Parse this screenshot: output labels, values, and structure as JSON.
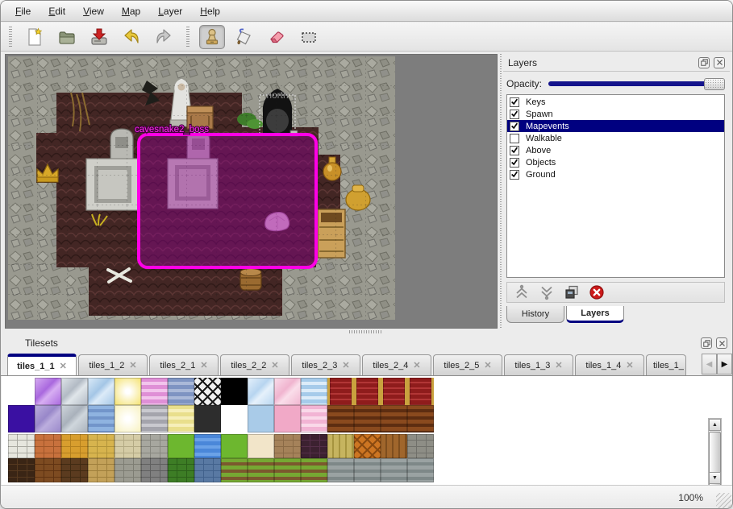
{
  "colors": {
    "accent_navy": "#000080",
    "map_selection_magenta": "#ff00e6",
    "map_background_gray": "#7d7d7d"
  },
  "menu_bar": {
    "items": [
      "File",
      "Edit",
      "View",
      "Map",
      "Layer",
      "Help"
    ]
  },
  "toolbar": {
    "buttons": [
      {
        "icon": "new-file-icon"
      },
      {
        "icon": "open-folder-icon"
      },
      {
        "icon": "save-icon"
      },
      {
        "icon": "undo-icon"
      },
      {
        "icon": "redo-icon"
      },
      {
        "icon": "stamp-tool-icon",
        "active": true
      },
      {
        "icon": "fill-tool-icon"
      },
      {
        "icon": "eraser-tool-icon"
      },
      {
        "icon": "rect-select-tool-icon"
      }
    ]
  },
  "map_view": {
    "north_label": "north",
    "event_label": "cavesnake2_boss"
  },
  "layers_panel": {
    "title": "Layers",
    "opacity_label": "Opacity:",
    "layers": [
      {
        "name": "Keys",
        "checked": true,
        "selected": false
      },
      {
        "name": "Spawn",
        "checked": true,
        "selected": false
      },
      {
        "name": "Mapevents",
        "checked": true,
        "selected": true
      },
      {
        "name": "Walkable",
        "checked": false,
        "selected": false
      },
      {
        "name": "Above",
        "checked": true,
        "selected": false
      },
      {
        "name": "Objects",
        "checked": true,
        "selected": false
      },
      {
        "name": "Ground",
        "checked": true,
        "selected": false
      }
    ],
    "buttons": [
      "move-layer-up",
      "move-layer-down",
      "duplicate-layer",
      "delete-layer"
    ],
    "tabs": [
      {
        "label": "History",
        "active": false
      },
      {
        "label": "Layers",
        "active": true
      }
    ]
  },
  "tilesets_panel": {
    "title": "Tilesets",
    "tabs": [
      {
        "label": "tiles_1_1",
        "active": true
      },
      {
        "label": "tiles_1_2",
        "active": false
      },
      {
        "label": "tiles_2_1",
        "active": false
      },
      {
        "label": "tiles_2_2",
        "active": false
      },
      {
        "label": "tiles_2_3",
        "active": false
      },
      {
        "label": "tiles_2_4",
        "active": false
      },
      {
        "label": "tiles_2_5",
        "active": false
      },
      {
        "label": "tiles_1_3",
        "active": false
      },
      {
        "label": "tiles_1_4",
        "active": false
      },
      {
        "label": "tiles_1_",
        "active": false,
        "partial": true
      }
    ],
    "palette": {
      "empty": {
        "s": "empty",
        "c": "#ffffff"
      },
      "crystal_purple": {
        "s": "crystal",
        "c": "#a968de",
        "c2": "#d7aef2"
      },
      "crystal_gray": {
        "s": "crystal",
        "c": "#b2bac4",
        "c2": "#e0e6ea"
      },
      "crystal_blue": {
        "s": "crystal",
        "c": "#a4c6e6",
        "c2": "#dcebf8"
      },
      "glow_yellow": {
        "s": "radial",
        "c": "#f5e478"
      },
      "stripes_pink": {
        "s": "hstripes",
        "c": "#df8fd6",
        "c2": "#f2c4ec"
      },
      "stripes_blue": {
        "s": "hstripes",
        "c": "#7e94c2",
        "c2": "#aab9d8"
      },
      "lattice": {
        "s": "lattice",
        "c": "#f2f2f2",
        "c2": "#1a1a1a"
      },
      "black": {
        "s": "flat",
        "c": "#000000"
      },
      "crystal_lightblue": {
        "s": "crystal",
        "c": "#b7d5f0",
        "c2": "#e6f1fb"
      },
      "crystal_pink": {
        "s": "crystal",
        "c": "#f0b4cf",
        "c2": "#fadeea"
      },
      "waves_blue": {
        "s": "hstripes",
        "c": "#a6cbea",
        "c2": "#dcecf9"
      },
      "carpet_red": {
        "s": "carpet",
        "c": "#8f1c1c",
        "c2": "#b23636"
      },
      "solid_indigo": {
        "s": "flat",
        "c": "#3a10a2"
      },
      "crystal_purple2": {
        "s": "crystal",
        "c": "#9887c9",
        "c2": "#bcaede"
      },
      "crystal_gray2": {
        "s": "crystal",
        "c": "#a9b1bb",
        "c2": "#cfd6dc"
      },
      "water_blue": {
        "s": "hstripes",
        "c": "#8fb3e0",
        "c2": "#7295ca"
      },
      "glow_pale": {
        "s": "radial",
        "c": "#f8f2c2"
      },
      "stripes_gray": {
        "s": "hstripes",
        "c": "#a4a4ac",
        "c2": "#c9c9cf"
      },
      "stripes_yellow": {
        "s": "hstripes",
        "c": "#e9df8c",
        "c2": "#f6efba"
      },
      "sign_dark": {
        "s": "flat",
        "c": "#2d2d2d"
      },
      "flat_blue": {
        "s": "flat",
        "c": "#a9cbe8"
      },
      "flat_pink": {
        "s": "flat",
        "c": "#f1a9c7"
      },
      "waves_pink": {
        "s": "hstripes",
        "c": "#f2b4d4",
        "c2": "#fad9e9"
      },
      "planks_brown": {
        "s": "hstripes",
        "c": "#8a4a1e",
        "c2": "#5d2d11"
      },
      "stone_white": {
        "s": "bricks",
        "c": "#e6e6de",
        "c2": "#a8a8a0"
      },
      "tiles_orange": {
        "s": "bricks",
        "c": "#c8713d",
        "c2": "#a05628"
      },
      "tiles_gold": {
        "s": "bricks",
        "c": "#d89e2e",
        "c2": "#b4801e"
      },
      "path_yellow": {
        "s": "bricks",
        "c": "#d7b44e",
        "c2": "#b2943a"
      },
      "cobbles_beige": {
        "s": "bricks",
        "c": "#d5cca6",
        "c2": "#b3aa84"
      },
      "cobbles_gray": {
        "s": "bricks",
        "c": "#a7a79f",
        "c2": "#87877f"
      },
      "grass_green": {
        "s": "flat",
        "c": "#6db72f"
      },
      "water_deep": {
        "s": "hstripes",
        "c": "#4a87d9",
        "c2": "#6ba2e7"
      },
      "sand_cream": {
        "s": "flat",
        "c": "#f2e5c9"
      },
      "dirt_rocks": {
        "s": "bricks",
        "c": "#a5825a",
        "c2": "#8a6a46"
      },
      "scales_purple": {
        "s": "bricks",
        "c": "#3c2130",
        "c2": "#552f49"
      },
      "planks_vert": {
        "s": "vstripes",
        "c": "#c6b45f",
        "c2": "#a6943f"
      },
      "woven_orange": {
        "s": "lattice",
        "c": "#cd7522",
        "c2": "#8a4a10"
      },
      "herringbone": {
        "s": "vstripes",
        "c": "#a0662c",
        "c2": "#7e4e1e"
      },
      "logs_gray": {
        "s": "bricks",
        "c": "#8e8e86",
        "c2": "#70706a"
      },
      "wall_darkbrown": {
        "s": "bricks",
        "c": "#3a2515",
        "c2": "#56391f"
      },
      "bricks_brown": {
        "s": "bricks",
        "c": "#7d4b21",
        "c2": "#5f3312"
      },
      "bricks_dark": {
        "s": "bricks",
        "c": "#5b3b1f",
        "c2": "#402a12"
      },
      "wall_tan": {
        "s": "bricks",
        "c": "#c3a159",
        "c2": "#9e7f3c"
      },
      "wall_cobble": {
        "s": "bricks",
        "c": "#9b9b91",
        "c2": "#7d7d73"
      },
      "wall_graybrick": {
        "s": "bricks",
        "c": "#808080",
        "c2": "#5f5f5f"
      },
      "hedge_green": {
        "s": "bricks",
        "c": "#3d7d25",
        "c2": "#2c601a"
      },
      "wall_blue": {
        "s": "bricks",
        "c": "#5979a3",
        "c2": "#41618c"
      },
      "grass_rows": {
        "s": "hstripes",
        "c": "#76a833",
        "c2": "#7b592e"
      },
      "planks_gray": {
        "s": "hstripes",
        "c": "#9aa2a2",
        "c2": "#7e8888"
      }
    },
    "grid": [
      [
        "empty",
        "crystal_purple",
        "crystal_gray",
        "crystal_blue",
        "glow_yellow",
        "stripes_pink",
        "stripes_blue",
        "lattice",
        "black",
        "crystal_lightblue",
        "crystal_pink",
        "waves_blue",
        "carpet_red",
        "carpet_red",
        "carpet_red",
        "carpet_red"
      ],
      [
        "solid_indigo",
        "crystal_purple2",
        "crystal_gray2",
        "water_blue",
        "glow_pale",
        "stripes_gray",
        "stripes_yellow",
        "sign_dark",
        "empty",
        "flat_blue",
        "flat_pink",
        "waves_pink",
        "planks_brown",
        "planks_brown",
        "planks_brown",
        "planks_brown"
      ],
      [
        "stone_white",
        "tiles_orange",
        "tiles_gold",
        "path_yellow",
        "cobbles_beige",
        "cobbles_gray",
        "grass_green",
        "water_deep",
        "grass_green",
        "sand_cream",
        "dirt_rocks",
        "scales_purple",
        "planks_vert",
        "woven_orange",
        "herringbone",
        "logs_gray"
      ],
      [
        "wall_darkbrown",
        "bricks_brown",
        "bricks_dark",
        "wall_tan",
        "wall_cobble",
        "wall_graybrick",
        "hedge_green",
        "wall_blue",
        "grass_rows",
        "grass_rows",
        "grass_rows",
        "grass_rows",
        "planks_gray",
        "planks_gray",
        "planks_gray",
        "planks_gray"
      ]
    ]
  },
  "status_bar": {
    "zoom_level": "100%"
  }
}
